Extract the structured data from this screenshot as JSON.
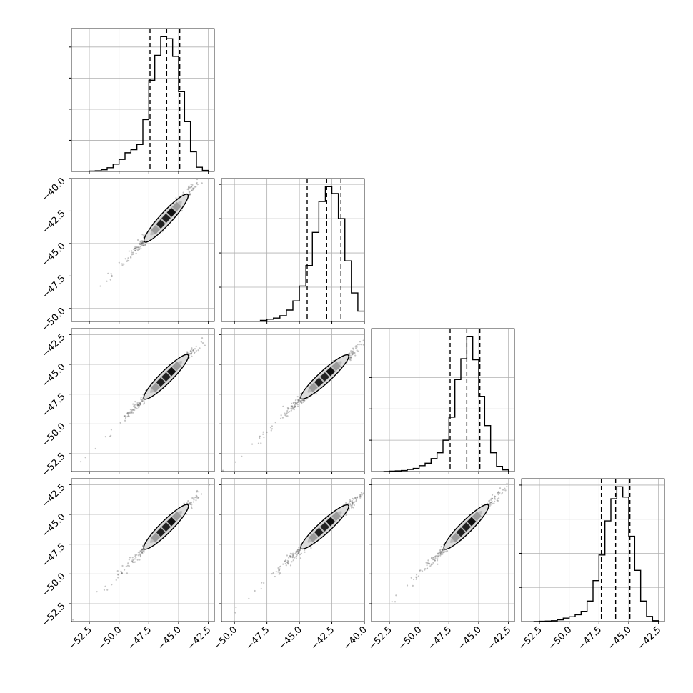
{
  "chart_data": {
    "type": "corner",
    "n_params": 4,
    "colors": {
      "line": "#000000",
      "grid": "#b0b0b0",
      "frame": "#000000",
      "points": "#555555"
    },
    "grid": true,
    "diagonal": [
      {
        "param_index": 0,
        "type": "histogram",
        "range": [
          -54.0,
          -42.0
        ],
        "quantiles": [
          -47.4,
          -46.0,
          -44.9
        ],
        "bin_edges": [
          -53.0,
          -52.5,
          -52.0,
          -51.5,
          -51.0,
          -50.5,
          -50.0,
          -49.5,
          -49.0,
          -48.5,
          -48.0,
          -47.5,
          -47.0,
          -46.5,
          -46.0,
          -45.5,
          -45.0,
          -44.5,
          -44.0,
          -43.5,
          -43.0,
          -42.5
        ],
        "counts": [
          0,
          2,
          3,
          8,
          18,
          35,
          58,
          90,
          105,
          130,
          250,
          440,
          560,
          650,
          640,
          555,
          385,
          240,
          95,
          20,
          5
        ]
      },
      {
        "param_index": 1,
        "type": "histogram",
        "range": [
          -51.0,
          -40.0
        ],
        "quantiles": [
          -44.4,
          -42.9,
          -41.8
        ],
        "bin_edges": [
          -48.0,
          -47.5,
          -47.0,
          -46.5,
          -46.0,
          -45.5,
          -45.0,
          -44.5,
          -44.0,
          -43.5,
          -43.0,
          -42.5,
          -42.0,
          -41.5,
          -41.0,
          -40.5,
          -40.0
        ],
        "counts": [
          5,
          10,
          15,
          25,
          50,
          90,
          155,
          245,
          390,
          525,
          590,
          560,
          450,
          265,
          125,
          45
        ]
      },
      {
        "param_index": 2,
        "type": "histogram",
        "range": [
          -54.0,
          -42.0
        ],
        "quantiles": [
          -47.4,
          -46.0,
          -44.9
        ],
        "bin_edges": [
          -53.0,
          -52.5,
          -52.0,
          -51.5,
          -51.0,
          -50.5,
          -50.0,
          -49.5,
          -49.0,
          -48.5,
          -48.0,
          -47.5,
          -47.0,
          -46.5,
          -46.0,
          -45.5,
          -45.0,
          -44.5,
          -44.0,
          -43.5,
          -43.0,
          -42.5
        ],
        "counts": [
          0,
          2,
          3,
          5,
          10,
          15,
          28,
          40,
          62,
          90,
          150,
          260,
          440,
          540,
          645,
          535,
          360,
          220,
          90,
          25,
          8
        ]
      },
      {
        "param_index": 3,
        "type": "histogram",
        "range": [
          -54.0,
          -42.0
        ],
        "quantiles": [
          -47.3,
          -46.1,
          -44.9
        ],
        "bin_edges": [
          -53.0,
          -52.5,
          -52.0,
          -51.5,
          -51.0,
          -50.5,
          -50.0,
          -49.5,
          -49.0,
          -48.5,
          -48.0,
          -47.5,
          -47.0,
          -46.5,
          -46.0,
          -45.5,
          -45.0,
          -44.5,
          -44.0,
          -43.5,
          -43.0,
          -42.5
        ],
        "counts": [
          0,
          2,
          3,
          5,
          10,
          20,
          28,
          40,
          60,
          120,
          240,
          390,
          590,
          720,
          790,
          730,
          500,
          300,
          120,
          30,
          5
        ]
      }
    ],
    "panels_2d": [
      {
        "row": 1,
        "col": 0,
        "x_range": [
          -54.0,
          -42.0
        ],
        "y_range": [
          -51.0,
          -40.0
        ],
        "x_mean": -46.0,
        "y_mean": -42.9,
        "x_std": 0.95,
        "corr": 0.995,
        "contour_x": [
          -47.3,
          -44.8
        ],
        "contour_y": [
          -44.3,
          -41.8
        ]
      },
      {
        "row": 2,
        "col": 0,
        "x_range": [
          -54.0,
          -42.0
        ],
        "y_range": [
          -54.0,
          -42.0
        ],
        "x_mean": -46.0,
        "y_mean": -46.0,
        "x_std": 0.95,
        "corr": 0.995,
        "contour_x": [
          -47.3,
          -44.8
        ],
        "contour_y": [
          -47.3,
          -44.8
        ]
      },
      {
        "row": 2,
        "col": 1,
        "x_range": [
          -51.0,
          -40.0
        ],
        "y_range": [
          -54.0,
          -42.0
        ],
        "x_mean": -42.9,
        "y_mean": -46.0,
        "x_std": 0.95,
        "corr": 0.995,
        "contour_x": [
          -44.3,
          -41.8
        ],
        "contour_y": [
          -47.3,
          -44.8
        ]
      },
      {
        "row": 3,
        "col": 0,
        "x_range": [
          -54.0,
          -42.0
        ],
        "y_range": [
          -54.0,
          -42.0
        ],
        "x_mean": -46.0,
        "y_mean": -46.0,
        "x_std": 0.95,
        "corr": 0.995,
        "contour_x": [
          -47.3,
          -44.8
        ],
        "contour_y": [
          -47.3,
          -44.8
        ]
      },
      {
        "row": 3,
        "col": 1,
        "x_range": [
          -51.0,
          -40.0
        ],
        "y_range": [
          -54.0,
          -42.0
        ],
        "x_mean": -42.9,
        "y_mean": -46.0,
        "x_std": 0.95,
        "corr": 0.995,
        "contour_x": [
          -44.3,
          -41.8
        ],
        "contour_y": [
          -47.3,
          -44.8
        ]
      },
      {
        "row": 3,
        "col": 2,
        "x_range": [
          -54.0,
          -42.0
        ],
        "y_range": [
          -54.0,
          -42.0
        ],
        "x_mean": -46.0,
        "y_mean": -46.0,
        "x_std": 0.95,
        "corr": 0.995,
        "contour_x": [
          -47.3,
          -44.8
        ],
        "contour_y": [
          -47.3,
          -44.8
        ]
      }
    ],
    "y_axes": [
      {
        "row": 1,
        "ticks": [
          -40.0,
          -42.5,
          -45.0,
          -47.5,
          -50.0
        ],
        "labels": [
          "−40.0",
          "−42.5",
          "−45.0",
          "−47.5",
          "−50.0"
        ]
      },
      {
        "row": 2,
        "ticks": [
          -42.5,
          -45.0,
          -47.5,
          -50.0,
          -52.5
        ],
        "labels": [
          "−42.5",
          "−45.0",
          "−47.5",
          "−50.0",
          "−52.5"
        ]
      },
      {
        "row": 3,
        "ticks": [
          -42.5,
          -45.0,
          -47.5,
          -50.0,
          -52.5
        ],
        "labels": [
          "−42.5",
          "−45.0",
          "−47.5",
          "−50.0",
          "−52.5"
        ]
      }
    ],
    "x_axes": [
      {
        "col": 0,
        "ticks": [
          -52.5,
          -50.0,
          -47.5,
          -45.0,
          -42.5
        ],
        "labels": [
          "−52.5",
          "−50.0",
          "−47.5",
          "−45.0",
          "−42.5"
        ]
      },
      {
        "col": 1,
        "ticks": [
          -50.0,
          -47.5,
          -45.0,
          -42.5,
          -40.0
        ],
        "labels": [
          "−50.0",
          "−47.5",
          "−45.0",
          "−42.5",
          "−40.0"
        ]
      },
      {
        "col": 2,
        "ticks": [
          -52.5,
          -50.0,
          -47.5,
          -45.0,
          -42.5
        ],
        "labels": [
          "−52.5",
          "−50.0",
          "−47.5",
          "−45.0",
          "−42.5"
        ]
      },
      {
        "col": 3,
        "ticks": [
          -52.5,
          -50.0,
          -47.5,
          -45.0,
          -42.5
        ],
        "labels": [
          "−52.5",
          "−50.0",
          "−47.5",
          "−45.0",
          "−42.5"
        ]
      }
    ]
  }
}
